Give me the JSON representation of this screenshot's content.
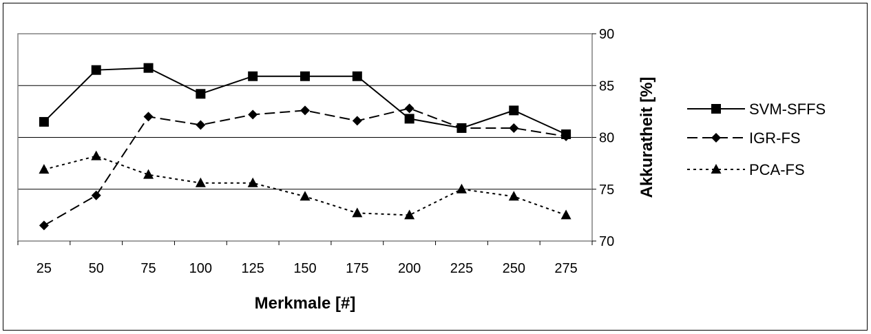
{
  "chart_data": {
    "type": "line",
    "title": "",
    "xlabel": "Merkmale [#]",
    "ylabel": "Akkuratheit [%]",
    "categories": [
      "25",
      "50",
      "75",
      "100",
      "125",
      "150",
      "175",
      "200",
      "225",
      "250",
      "275"
    ],
    "ylim": [
      70,
      90
    ],
    "yticks": [
      "70",
      "75",
      "80",
      "85",
      "90"
    ],
    "y_axis_side": "right",
    "grid": "horizontal",
    "legend_position": "right",
    "series": [
      {
        "name": "SVM-SFFS",
        "line": "solid",
        "marker": "square",
        "color": "#000000",
        "values": [
          81.5,
          86.5,
          86.7,
          84.2,
          85.9,
          85.9,
          85.9,
          81.8,
          80.9,
          82.6,
          80.3
        ]
      },
      {
        "name": "IGR-FS",
        "line": "dashed",
        "marker": "diamond",
        "color": "#000000",
        "values": [
          71.5,
          74.4,
          82.0,
          81.2,
          82.2,
          82.6,
          81.6,
          82.8,
          80.9,
          80.9,
          80.1
        ]
      },
      {
        "name": "PCA-FS",
        "line": "dotted",
        "marker": "triangle",
        "color": "#000000",
        "values": [
          76.9,
          78.2,
          76.4,
          75.6,
          75.6,
          74.3,
          72.7,
          72.5,
          75.0,
          74.3,
          72.5
        ]
      }
    ]
  }
}
